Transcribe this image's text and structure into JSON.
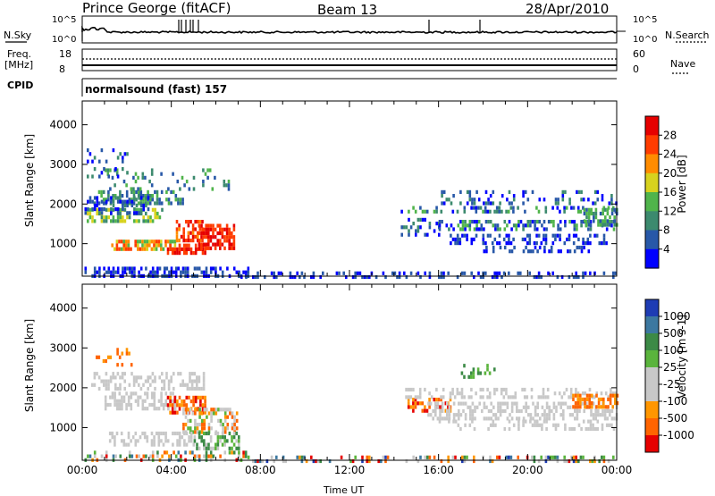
{
  "header": {
    "station": "Prince George (fitACF)",
    "beam": "Beam 13",
    "date": "28/Apr/2010"
  },
  "top_panels": {
    "nsky_label": "N.Sky",
    "nsky_ticks": [
      "10^5",
      "10^0"
    ],
    "nsearch_label": "N.Search",
    "nsearch_ticks": [
      "10^5",
      "10^0"
    ],
    "freq_label": "Freq.",
    "freq_unit": "[MHz]",
    "freq_ticks": [
      "18",
      "8"
    ],
    "nave_label": "Nave",
    "nave_ticks": [
      "60",
      "0"
    ],
    "cpid_label": "CPID",
    "cpid_value": "normalsound (fast) 157"
  },
  "chart_data": [
    {
      "type": "heatmap",
      "name_hint": "power",
      "ylabel": "Slant Range [km]",
      "xlabel": "",
      "ylim": [
        180,
        4600
      ],
      "xlim": [
        0,
        24
      ],
      "y_ticks": [
        "1000",
        "2000",
        "3000",
        "4000"
      ],
      "colorbar_label": "Power [dB]",
      "colorbar_ticks": [
        "4",
        "8",
        "12",
        "16",
        "20",
        "24",
        "28"
      ],
      "colorbar_colors": [
        "#0000ff",
        "#2858a8",
        "#3c8a6e",
        "#50b44b",
        "#d7d21e",
        "#ff8c00",
        "#ff3c00",
        "#e60000"
      ]
    },
    {
      "type": "heatmap",
      "name_hint": "velocity",
      "ylabel": "Slant Range [km]",
      "xlabel": "Time UT",
      "ylim": [
        180,
        4600
      ],
      "xlim": [
        0,
        24
      ],
      "y_ticks": [
        "1000",
        "2000",
        "3000",
        "4000"
      ],
      "x_ticks": [
        "00:00",
        "04:00",
        "08:00",
        "12:00",
        "16:00",
        "20:00",
        "00:00"
      ],
      "colorbar_label": "Velocity [m s-1]",
      "colorbar_ticks": [
        "1000",
        "500",
        "100",
        "25",
        "-25",
        "-100",
        "-500",
        "-1000"
      ],
      "colorbar_colors": [
        "#1e3cb4",
        "#3c78a0",
        "#3c8a46",
        "#5ab43c",
        "#c8c8c8",
        "#c8c8c8",
        "#ff9600",
        "#ff6400",
        "#e60000"
      ]
    }
  ]
}
